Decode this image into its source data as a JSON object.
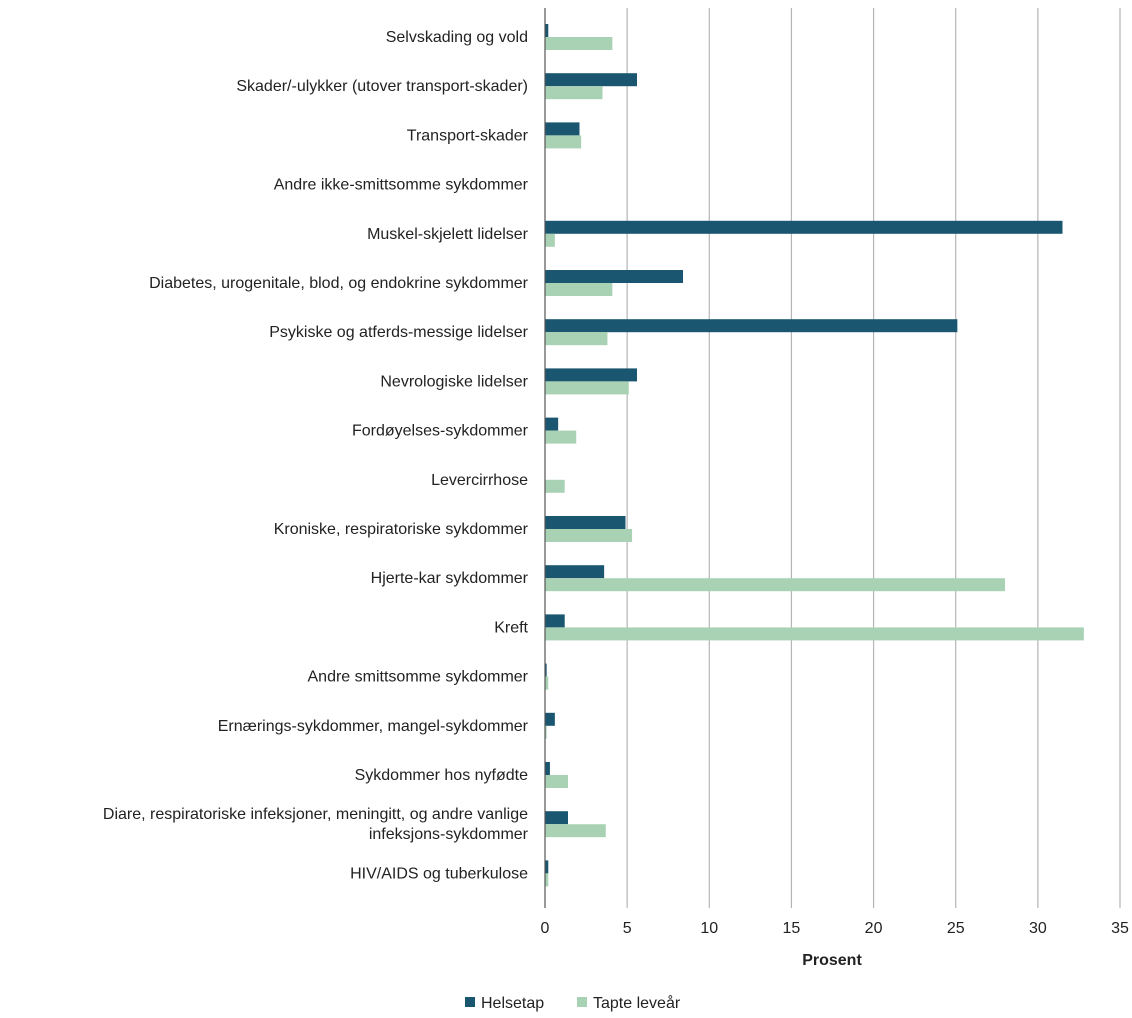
{
  "chart_data": {
    "type": "bar",
    "orientation": "horizontal",
    "categories": [
      "Selvskading og vold",
      "Skader/-ulykker (utover transport-skader)",
      "Transport-skader",
      "Andre ikke-smittsomme sykdommer",
      "Muskel-skjelett lidelser",
      "Diabetes, urogenitale, blod, og endokrine sykdommer",
      "Psykiske og atferds-messige lidelser",
      "Nevrologiske lidelser",
      "Fordøyelses-sykdommer",
      "Levercirrhose",
      "Kroniske, respiratoriske sykdommer",
      "Hjerte-kar sykdommer",
      "Kreft",
      "Andre smittsomme sykdommer",
      "Ernærings-sykdommer, mangel-sykdommer",
      "Sykdommer hos nyfødte",
      "Diare, respiratoriske infeksjoner, meningitt, og andre vanlige infeksjons-sykdommer",
      "HIV/AIDS og tuberkulose"
    ],
    "series": [
      {
        "name": "Helsetap",
        "color": "#1a5670",
        "values": [
          0.2,
          5.6,
          2.1,
          0,
          31.5,
          8.4,
          25.1,
          5.6,
          0.8,
          0,
          4.9,
          3.6,
          1.2,
          0.1,
          0.6,
          0.3,
          1.4,
          0.2
        ]
      },
      {
        "name": "Tapte leveår",
        "color": "#a9d2b5",
        "values": [
          4.1,
          3.5,
          2.2,
          0,
          0.6,
          4.1,
          3.8,
          5.1,
          1.9,
          1.2,
          5.3,
          28.0,
          32.8,
          0.2,
          0.1,
          1.4,
          3.7,
          0.2
        ]
      }
    ],
    "xlim": [
      0,
      35
    ],
    "xticks": [
      "0",
      "5",
      "10",
      "15",
      "20",
      "25",
      "30",
      "35"
    ],
    "xlabel": "Prosent",
    "ylabel": "",
    "grid": "vertical",
    "legend_position": "bottom"
  },
  "legend": {
    "items": [
      {
        "label": "Helsetap",
        "color": "#1a5670"
      },
      {
        "label": "Tapte leveår",
        "color": "#a9d2b5"
      }
    ]
  }
}
